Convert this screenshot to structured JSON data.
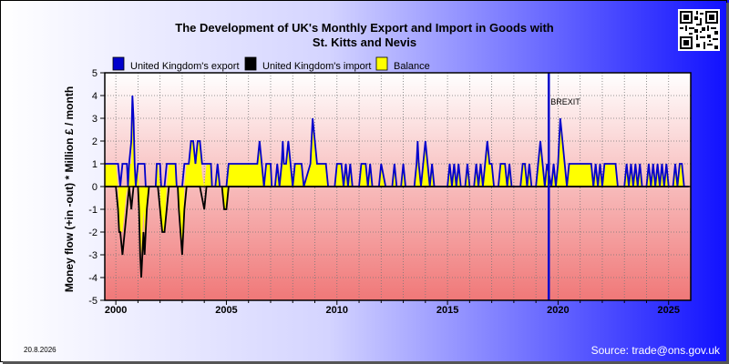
{
  "header": {
    "title_line1": "The Development of UK's Monthly Export and Import in Goods with",
    "title_line2": "St. Kitts and Nevis"
  },
  "footer": {
    "date": "20.8.2026",
    "source": "Source: trade@ons.gov.uk"
  },
  "colors": {
    "export": "#0000cc",
    "import": "#000000",
    "balance": "#ffff00",
    "brexit_line": "#0000cc"
  },
  "chart_data": {
    "type": "area",
    "title": "The Development of UK's Monthly Export and Import in Goods with St. Kitts and Nevis",
    "ylabel": "Money flow (+in -out) * Million £ / month",
    "xlabel": "",
    "ylim": [
      -5,
      5
    ],
    "yticks": [
      -5,
      -4,
      -3,
      -2,
      -1,
      0,
      1,
      2,
      3,
      4,
      5
    ],
    "xlim": [
      1999.5,
      2026.0
    ],
    "xticks": [
      2000,
      2005,
      2010,
      2015,
      2020,
      2025
    ],
    "grid": true,
    "legend": [
      "United Kingdom's export",
      "United Kingdom's import",
      "Balance"
    ],
    "legend_placement": "top",
    "annotation": {
      "label": "BREXIT",
      "x": 2019.58
    },
    "series": [
      {
        "name": "United Kingdom's export",
        "points": [
          [
            1999.5,
            1
          ],
          [
            2000.1,
            1
          ],
          [
            2000.2,
            0
          ],
          [
            2000.3,
            1
          ],
          [
            2000.5,
            1
          ],
          [
            2000.55,
            0
          ],
          [
            2000.6,
            1
          ],
          [
            2000.7,
            2
          ],
          [
            2000.75,
            4
          ],
          [
            2000.8,
            3
          ],
          [
            2000.85,
            1
          ],
          [
            2000.9,
            0
          ],
          [
            2001.0,
            1
          ],
          [
            2001.3,
            1
          ],
          [
            2001.35,
            0
          ],
          [
            2001.8,
            0
          ],
          [
            2001.85,
            1
          ],
          [
            2002.0,
            1
          ],
          [
            2002.05,
            0
          ],
          [
            2002.2,
            0
          ],
          [
            2002.3,
            1
          ],
          [
            2002.7,
            1
          ],
          [
            2002.75,
            0
          ],
          [
            2003.0,
            0
          ],
          [
            2003.1,
            1
          ],
          [
            2003.3,
            1
          ],
          [
            2003.4,
            2
          ],
          [
            2003.5,
            2
          ],
          [
            2003.6,
            1
          ],
          [
            2003.7,
            2
          ],
          [
            2003.8,
            2
          ],
          [
            2003.9,
            1
          ],
          [
            2004.3,
            1
          ],
          [
            2004.35,
            0
          ],
          [
            2004.5,
            0
          ],
          [
            2004.6,
            1
          ],
          [
            2004.7,
            0
          ],
          [
            2005.0,
            0
          ],
          [
            2005.1,
            1
          ],
          [
            2006.4,
            1
          ],
          [
            2006.5,
            2
          ],
          [
            2006.6,
            1
          ],
          [
            2006.7,
            0
          ],
          [
            2006.8,
            1
          ],
          [
            2007.0,
            1
          ],
          [
            2007.05,
            0
          ],
          [
            2007.2,
            0
          ],
          [
            2007.3,
            1
          ],
          [
            2007.4,
            0
          ],
          [
            2007.5,
            1
          ],
          [
            2007.55,
            2
          ],
          [
            2007.6,
            1
          ],
          [
            2007.7,
            1
          ],
          [
            2007.8,
            2
          ],
          [
            2007.9,
            1
          ],
          [
            2008.0,
            0
          ],
          [
            2008.1,
            1
          ],
          [
            2008.4,
            1
          ],
          [
            2008.5,
            0
          ],
          [
            2008.8,
            1
          ],
          [
            2008.9,
            3
          ],
          [
            2009.0,
            2
          ],
          [
            2009.1,
            1
          ],
          [
            2009.5,
            1
          ],
          [
            2009.6,
            0
          ],
          [
            2009.9,
            0
          ],
          [
            2010.0,
            1
          ],
          [
            2010.2,
            1
          ],
          [
            2010.3,
            0
          ],
          [
            2010.4,
            1
          ],
          [
            2010.5,
            0
          ],
          [
            2010.6,
            1
          ],
          [
            2010.7,
            0
          ],
          [
            2011.0,
            0
          ],
          [
            2011.1,
            1
          ],
          [
            2011.3,
            1
          ],
          [
            2011.4,
            0
          ],
          [
            2011.5,
            1
          ],
          [
            2011.6,
            0
          ],
          [
            2011.9,
            0
          ],
          [
            2012.0,
            1
          ],
          [
            2012.2,
            0
          ],
          [
            2012.5,
            0
          ],
          [
            2012.6,
            1
          ],
          [
            2012.7,
            0
          ],
          [
            2012.9,
            0
          ],
          [
            2013.0,
            1
          ],
          [
            2013.1,
            0
          ],
          [
            2013.5,
            0
          ],
          [
            2013.6,
            1
          ],
          [
            2013.65,
            2
          ],
          [
            2013.7,
            1
          ],
          [
            2013.8,
            0
          ],
          [
            2013.9,
            1
          ],
          [
            2014.0,
            2
          ],
          [
            2014.1,
            1
          ],
          [
            2014.2,
            0
          ],
          [
            2014.3,
            1
          ],
          [
            2014.4,
            0
          ],
          [
            2015.0,
            0
          ],
          [
            2015.1,
            1
          ],
          [
            2015.2,
            0
          ],
          [
            2015.3,
            1
          ],
          [
            2015.4,
            0
          ],
          [
            2015.5,
            1
          ],
          [
            2015.6,
            0
          ],
          [
            2015.8,
            0
          ],
          [
            2015.9,
            1
          ],
          [
            2016.0,
            0
          ],
          [
            2016.2,
            0
          ],
          [
            2016.3,
            1
          ],
          [
            2016.4,
            0
          ],
          [
            2016.5,
            1
          ],
          [
            2016.6,
            0
          ],
          [
            2016.7,
            1
          ],
          [
            2016.8,
            2
          ],
          [
            2016.9,
            1
          ],
          [
            2017.0,
            1
          ],
          [
            2017.1,
            0
          ],
          [
            2017.3,
            0
          ],
          [
            2017.4,
            1
          ],
          [
            2017.6,
            1
          ],
          [
            2017.7,
            0
          ],
          [
            2017.8,
            1
          ],
          [
            2017.9,
            0
          ],
          [
            2018.3,
            0
          ],
          [
            2018.4,
            1
          ],
          [
            2018.5,
            1
          ],
          [
            2018.6,
            0
          ],
          [
            2018.7,
            1
          ],
          [
            2018.8,
            0
          ],
          [
            2019.0,
            0
          ],
          [
            2019.1,
            1
          ],
          [
            2019.2,
            2
          ],
          [
            2019.3,
            1
          ],
          [
            2019.4,
            0
          ],
          [
            2019.5,
            1
          ],
          [
            2019.7,
            0
          ],
          [
            2019.8,
            1
          ],
          [
            2019.9,
            0
          ],
          [
            2020.0,
            1
          ],
          [
            2020.05,
            2
          ],
          [
            2020.1,
            3
          ],
          [
            2020.2,
            2
          ],
          [
            2020.3,
            1
          ],
          [
            2020.4,
            0
          ],
          [
            2020.5,
            1
          ],
          [
            2021.5,
            1
          ],
          [
            2021.6,
            0
          ],
          [
            2021.7,
            1
          ],
          [
            2021.8,
            0
          ],
          [
            2021.9,
            1
          ],
          [
            2022.0,
            0
          ],
          [
            2022.1,
            1
          ],
          [
            2022.6,
            1
          ],
          [
            2022.7,
            0
          ],
          [
            2023.0,
            0
          ],
          [
            2023.1,
            1
          ],
          [
            2023.2,
            0
          ],
          [
            2023.3,
            1
          ],
          [
            2023.4,
            0
          ],
          [
            2023.5,
            1
          ],
          [
            2023.6,
            0
          ],
          [
            2023.7,
            1
          ],
          [
            2023.8,
            0
          ],
          [
            2024.0,
            0
          ],
          [
            2024.1,
            1
          ],
          [
            2024.2,
            0
          ],
          [
            2024.3,
            1
          ],
          [
            2024.4,
            0
          ],
          [
            2024.5,
            1
          ],
          [
            2024.6,
            0
          ],
          [
            2024.7,
            1
          ],
          [
            2024.8,
            0
          ],
          [
            2024.9,
            1
          ],
          [
            2025.0,
            0
          ],
          [
            2025.2,
            0
          ],
          [
            2025.3,
            1
          ],
          [
            2025.4,
            0
          ],
          [
            2025.5,
            1
          ],
          [
            2025.6,
            1
          ],
          [
            2025.7,
            0
          ],
          [
            2025.9,
            0
          ]
        ]
      },
      {
        "name": "United Kingdom's import",
        "points": [
          [
            1999.5,
            0
          ],
          [
            2000.0,
            0
          ],
          [
            2000.1,
            -1
          ],
          [
            2000.15,
            -2
          ],
          [
            2000.2,
            -2
          ],
          [
            2000.3,
            -3
          ],
          [
            2000.4,
            -2
          ],
          [
            2000.5,
            -1
          ],
          [
            2000.6,
            0
          ],
          [
            2000.7,
            -1
          ],
          [
            2000.8,
            0
          ],
          [
            2001.0,
            0
          ],
          [
            2001.05,
            -1
          ],
          [
            2001.1,
            -3
          ],
          [
            2001.15,
            -4
          ],
          [
            2001.2,
            -3
          ],
          [
            2001.25,
            -2
          ],
          [
            2001.3,
            -3
          ],
          [
            2001.4,
            -1
          ],
          [
            2001.5,
            0
          ],
          [
            2001.9,
            0
          ],
          [
            2002.0,
            -1
          ],
          [
            2002.1,
            -2
          ],
          [
            2002.2,
            -2
          ],
          [
            2002.3,
            -1
          ],
          [
            2002.4,
            0
          ],
          [
            2002.8,
            0
          ],
          [
            2002.85,
            -1
          ],
          [
            2003.0,
            -3
          ],
          [
            2003.1,
            -1
          ],
          [
            2003.2,
            0
          ],
          [
            2003.8,
            0
          ],
          [
            2004.0,
            -1
          ],
          [
            2004.1,
            0
          ],
          [
            2004.8,
            0
          ],
          [
            2004.9,
            -1
          ],
          [
            2005.0,
            -1
          ],
          [
            2005.1,
            0
          ],
          [
            2025.9,
            0
          ]
        ]
      }
    ]
  }
}
